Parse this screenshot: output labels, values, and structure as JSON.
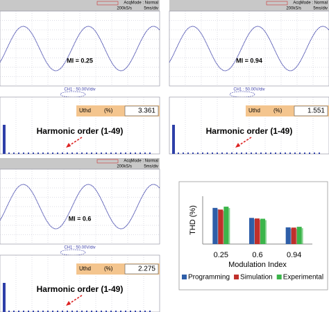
{
  "scopes": [
    {
      "acq_mode": "AcqMode : Normal",
      "rate": "200kS/s",
      "timebase": "5ms/div",
      "channel": "CH1 : 50.00V/div",
      "mi_label": "MI = 0.25",
      "uthd_label": "Uthd",
      "unit": "(%)",
      "uthd_value": "3.361",
      "harmonic_label": "Harmonic order (1-49)"
    },
    {
      "acq_mode": "AcqMode : Normal",
      "rate": "200kS/s",
      "timebase": "5ms/div",
      "channel": "CH1 : 50.00V/div",
      "mi_label": "MI = 0.94",
      "uthd_label": "Uthd",
      "unit": "(%)",
      "uthd_value": "1.551",
      "harmonic_label": "Harmonic order (1-49)"
    },
    {
      "acq_mode": "AcqMode : Normal",
      "rate": "200kS/s",
      "timebase": "5ms/div",
      "channel": "CH1 : 50.00V/div",
      "mi_label": "MI = 0.6",
      "uthd_label": "Uthd",
      "unit": "(%)",
      "uthd_value": "2.275",
      "harmonic_label": "Harmonic order (1-49)"
    }
  ],
  "chart_data": {
    "type": "bar",
    "y_label": "THD (%)",
    "x_label": "Modulation Index",
    "categories": [
      "0.25",
      "0.6",
      "0.94"
    ],
    "series": [
      {
        "name": "Programming",
        "color": "#2e5ea8",
        "values": [
          3.25,
          2.35,
          1.5
        ]
      },
      {
        "name": "Simulation",
        "color": "#c0302b",
        "values": [
          3.1,
          2.3,
          1.48
        ]
      },
      {
        "name": "Experimental",
        "color": "#3bb54a",
        "values": [
          3.361,
          2.275,
          1.551
        ]
      }
    ],
    "ylim": [
      0,
      4.3
    ]
  }
}
